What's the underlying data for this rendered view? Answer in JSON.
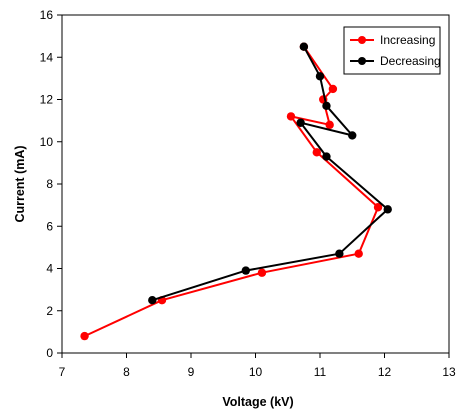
{
  "chart_data": {
    "type": "line",
    "title": "",
    "xlabel": "Voltage (kV)",
    "ylabel": "Current (mA)",
    "xlim": [
      7,
      13
    ],
    "ylim": [
      0,
      16
    ],
    "x_ticks": [
      "7",
      "8",
      "9",
      "10",
      "11",
      "12",
      "13"
    ],
    "y_ticks": [
      "0",
      "2",
      "4",
      "6",
      "8",
      "10",
      "12",
      "14",
      "16"
    ],
    "grid": false,
    "legend_position": "top-right",
    "series": [
      {
        "name": "Increasing",
        "color": "#ff0000",
        "marker": "circle",
        "points": [
          {
            "x": 7.35,
            "y": 0.8
          },
          {
            "x": 8.55,
            "y": 2.5
          },
          {
            "x": 10.1,
            "y": 3.8
          },
          {
            "x": 11.6,
            "y": 4.7
          },
          {
            "x": 11.9,
            "y": 6.9
          },
          {
            "x": 10.95,
            "y": 9.5
          },
          {
            "x": 10.55,
            "y": 11.2
          },
          {
            "x": 11.15,
            "y": 10.8
          },
          {
            "x": 11.05,
            "y": 12.0
          },
          {
            "x": 11.2,
            "y": 12.5
          },
          {
            "x": 10.75,
            "y": 14.5
          }
        ]
      },
      {
        "name": "Decreasing",
        "color": "#000000",
        "marker": "circle",
        "points": [
          {
            "x": 10.75,
            "y": 14.5
          },
          {
            "x": 11.0,
            "y": 13.1
          },
          {
            "x": 11.1,
            "y": 11.7
          },
          {
            "x": 11.5,
            "y": 10.3
          },
          {
            "x": 10.7,
            "y": 10.9
          },
          {
            "x": 11.1,
            "y": 9.3
          },
          {
            "x": 12.05,
            "y": 6.8
          },
          {
            "x": 11.3,
            "y": 4.7
          },
          {
            "x": 9.85,
            "y": 3.9
          },
          {
            "x": 8.4,
            "y": 2.5
          }
        ]
      }
    ]
  }
}
